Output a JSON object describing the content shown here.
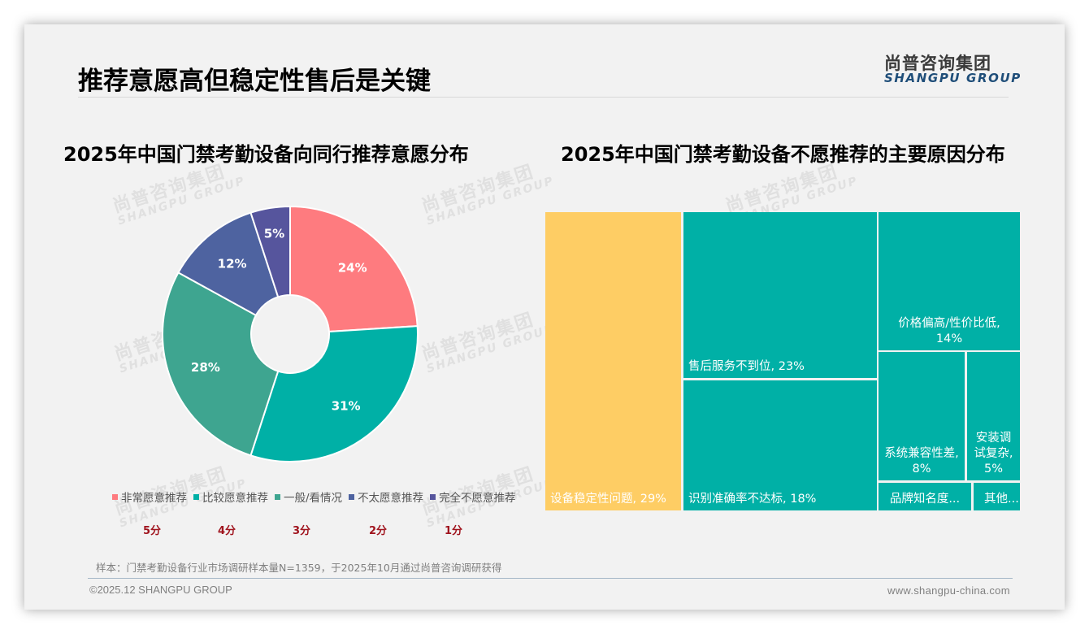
{
  "header": {
    "title": "推荐意愿高但稳定性售后是关键",
    "logo_cn": "尚普咨询集团",
    "logo_en": "SHANGPU GROUP"
  },
  "watermark": {
    "cn": "尚普咨询集团",
    "en": "SHANGPU GROUP"
  },
  "left_chart": {
    "title": "2025年中国门禁考勤设备向同行推荐意愿分布",
    "slices": [
      {
        "label": "非常愿意推荐",
        "value": 24,
        "text": "24%",
        "color": "#fe7b7f",
        "score": "5分"
      },
      {
        "label": "比较愿意推荐",
        "value": 31,
        "text": "31%",
        "color": "#00b0a6",
        "score": "4分"
      },
      {
        "label": "一般/看情况",
        "value": 28,
        "text": "28%",
        "color": "#3ea590",
        "score": "3分"
      },
      {
        "label": "不太愿意推荐",
        "value": 12,
        "text": "12%",
        "color": "#4e63a0",
        "score": "2分"
      },
      {
        "label": "完全不愿意推荐",
        "value": 5,
        "text": "5%",
        "color": "#56559d",
        "score": "1分"
      }
    ]
  },
  "right_chart": {
    "title": "2025年中国门禁考勤设备不愿推荐的主要原因分布",
    "tiles": [
      {
        "label": "设备稳定性问题, 29%",
        "color": "#fecd64"
      },
      {
        "label": "售后服务不到位, 23%",
        "color": "#00b0a6"
      },
      {
        "label": "识别准确率不达标, 18%",
        "color": "#00b0a6"
      },
      {
        "label_line1": "价格偏高/性价比低,",
        "label_line2": "14%",
        "color": "#00b0a6"
      },
      {
        "label_line1": "系统兼容性差,",
        "label_line2": "8%",
        "color": "#00b0a6"
      },
      {
        "label_line1": "安装调",
        "label_line2": "试复杂,",
        "label_line3": "5%",
        "color": "#00b0a6"
      },
      {
        "label": "品牌知名度...",
        "color": "#00b0a6"
      },
      {
        "label": "其他...",
        "color": "#00b0a6"
      }
    ]
  },
  "chart_data": [
    {
      "type": "pie",
      "title": "2025年中国门禁考勤设备向同行推荐意愿分布",
      "categories": [
        "非常愿意推荐",
        "比较愿意推荐",
        "一般/看情况",
        "不太愿意推荐",
        "完全不愿意推荐"
      ],
      "values": [
        24,
        31,
        28,
        12,
        5
      ],
      "unit": "%",
      "scores": [
        "5分",
        "4分",
        "3分",
        "2分",
        "1分"
      ],
      "colors": [
        "#fe7b7f",
        "#00b0a6",
        "#3ea590",
        "#4e63a0",
        "#56559d"
      ],
      "donut": true,
      "legend_position": "bottom"
    },
    {
      "type": "treemap",
      "title": "2025年中国门禁考勤设备不愿推荐的主要原因分布",
      "categories": [
        "设备稳定性问题",
        "售后服务不到位",
        "识别准确率不达标",
        "价格偏高/性价比低",
        "系统兼容性差",
        "安装调试复杂",
        "品牌知名度...",
        "其他..."
      ],
      "values": [
        29,
        23,
        18,
        14,
        8,
        5,
        null,
        null
      ],
      "unit": "%"
    }
  ],
  "footer": {
    "note": "样本：门禁考勤设备行业市场调研样本量N=1359，于2025年10月通过尚普咨询调研获得",
    "copyright": "©2025.12 SHANGPU GROUP",
    "website": "www.shangpu-china.com"
  }
}
